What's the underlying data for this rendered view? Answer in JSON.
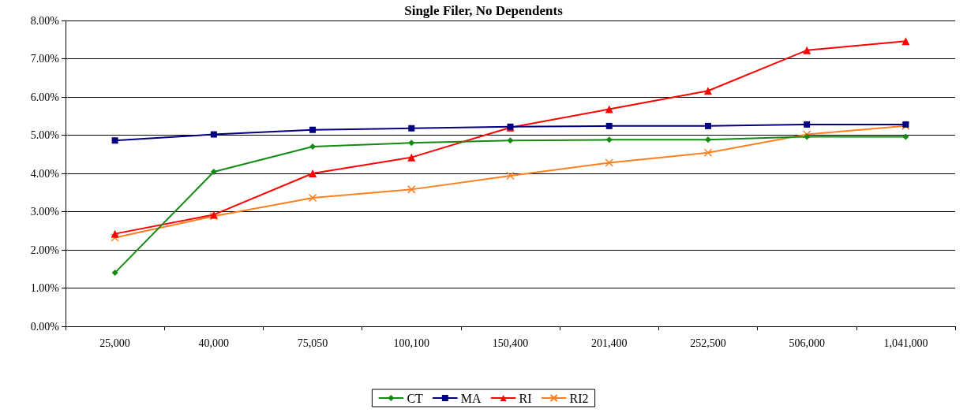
{
  "chart_data": {
    "type": "line",
    "title": "Single Filer, No Dependents",
    "categories": [
      "25,000",
      "40,000",
      "75,050",
      "100,100",
      "150,400",
      "201,400",
      "252,500",
      "506,000",
      "1,041,000"
    ],
    "series": [
      {
        "name": "CT",
        "color": "#138a13",
        "marker": "diamond",
        "values": [
          1.4,
          4.04,
          4.7,
          4.8,
          4.86,
          4.88,
          4.88,
          4.96,
          4.96
        ]
      },
      {
        "name": "MA",
        "color": "#000080",
        "marker": "square",
        "values": [
          4.86,
          5.02,
          5.14,
          5.18,
          5.22,
          5.24,
          5.24,
          5.28,
          5.28
        ]
      },
      {
        "name": "RI",
        "color": "#ff0000",
        "marker": "triangle",
        "values": [
          2.42,
          2.92,
          4.0,
          4.42,
          5.2,
          5.68,
          6.16,
          7.22,
          7.46
        ]
      },
      {
        "name": "RI2",
        "color": "#ff7f1e",
        "marker": "cross",
        "values": [
          2.32,
          2.88,
          3.36,
          3.58,
          3.94,
          4.28,
          4.54,
          5.02,
          5.24
        ]
      }
    ],
    "ylim": [
      0,
      8
    ],
    "yticks": [
      {
        "value": 0,
        "label": "0.00%"
      },
      {
        "value": 1,
        "label": "1.00%"
      },
      {
        "value": 2,
        "label": "2.00%"
      },
      {
        "value": 3,
        "label": "3.00%"
      },
      {
        "value": 4,
        "label": "4.00%"
      },
      {
        "value": 5,
        "label": "5.00%"
      },
      {
        "value": 6,
        "label": "6.00%"
      },
      {
        "value": 7,
        "label": "7.00%"
      },
      {
        "value": 8,
        "label": "8.00%"
      }
    ],
    "grid": "y",
    "legend": "bottom",
    "line_style": "solid"
  }
}
